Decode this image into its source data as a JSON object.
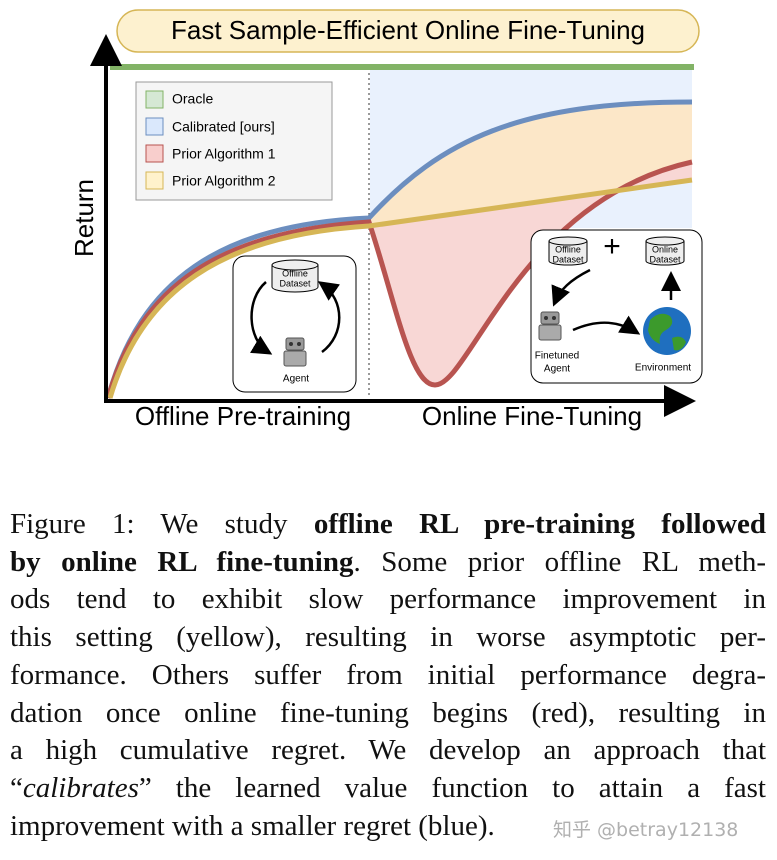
{
  "title": "Fast Sample-Efficient Online Fine-Tuning",
  "y_axis_label": "Return",
  "x_axis_labels": [
    "Offline Pre-training",
    "Online Fine-Tuning"
  ],
  "legend": [
    "Oracle",
    "Calibrated [ours]",
    "Prior Algorithm 1",
    "Prior Algorithm 2"
  ],
  "left_panel": {
    "dataset": [
      "Offline",
      "Dataset"
    ],
    "agent": "Agent"
  },
  "right_panel": {
    "offline_dataset": [
      "Offline",
      "Dataset"
    ],
    "online_dataset": [
      "Online",
      "Dataset"
    ],
    "agent": [
      "Finetuned",
      "Agent"
    ],
    "environment": "Environment"
  },
  "caption": {
    "lines": [
      [
        "Figure 1: We study ",
        "offline RL pre-training followed"
      ],
      [
        "by online RL fine-tuning",
        ". Some prior offline RL meth-"
      ],
      [
        "ods tend to exhibit slow performance improvement in"
      ],
      [
        "this setting (yellow), resulting in worse asymptotic per-"
      ],
      [
        "formance. Others suffer from initial performance degra-"
      ],
      [
        "dation once online fine-tuning begins (red), resulting in"
      ],
      [
        "a high cumulative regret. We develop an approach that"
      ],
      [
        "“",
        "calibrates",
        "” the learned value function to attain a fast"
      ],
      [
        "improvement with a smaller regret (blue)."
      ]
    ]
  },
  "watermark": "知乎 @betray12138"
}
